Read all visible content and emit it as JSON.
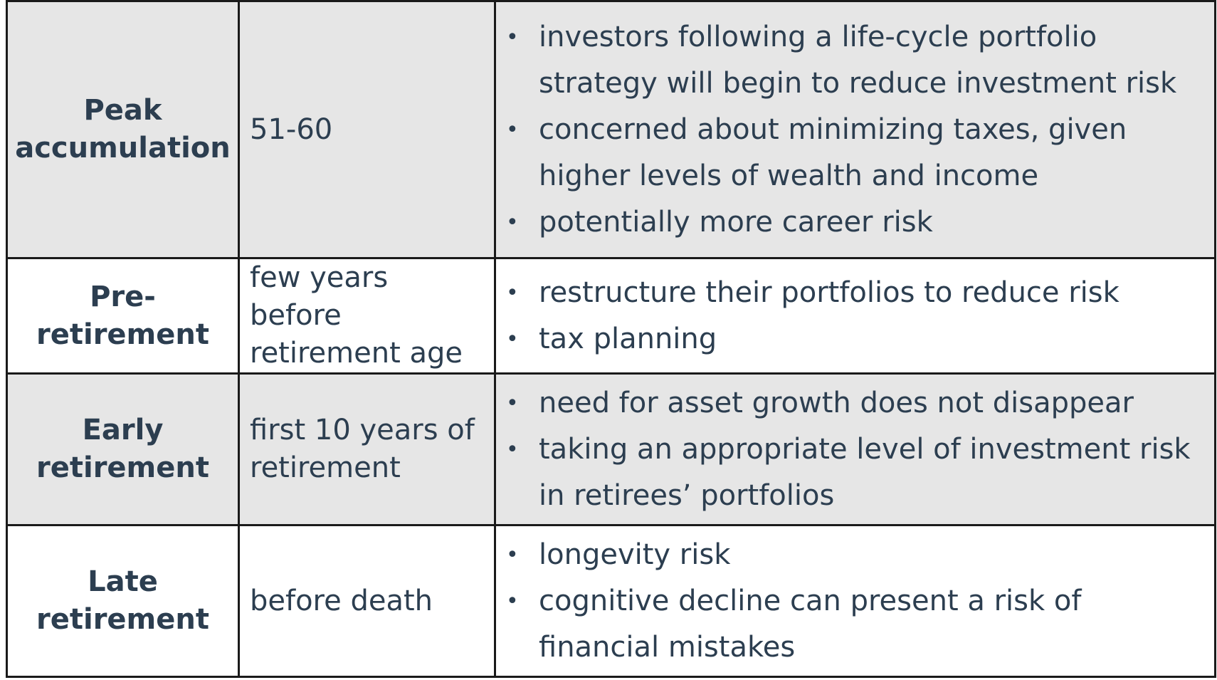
{
  "rows": [
    {
      "stage": "Peak accumulation",
      "age": "51-60",
      "notes": [
        "investors following a life-cycle portfolio strategy will begin to reduce investment risk",
        "concerned about minimizing taxes, given higher levels of wealth and income",
        "potentially more career risk"
      ]
    },
    {
      "stage": "Pre-retirement",
      "age": "few years before retirement age",
      "notes": [
        "restructure their portfolios to reduce risk",
        "tax planning"
      ]
    },
    {
      "stage": "Early retirement",
      "age": "first 10 years of retirement",
      "notes": [
        "need for asset growth does not disappear",
        "taking an appropriate level of investment risk in retirees’ portfolios"
      ]
    },
    {
      "stage": "Late retirement",
      "age": "before death",
      "notes": [
        "longevity risk",
        "cognitive decline can present a risk of financial mistakes"
      ]
    }
  ]
}
